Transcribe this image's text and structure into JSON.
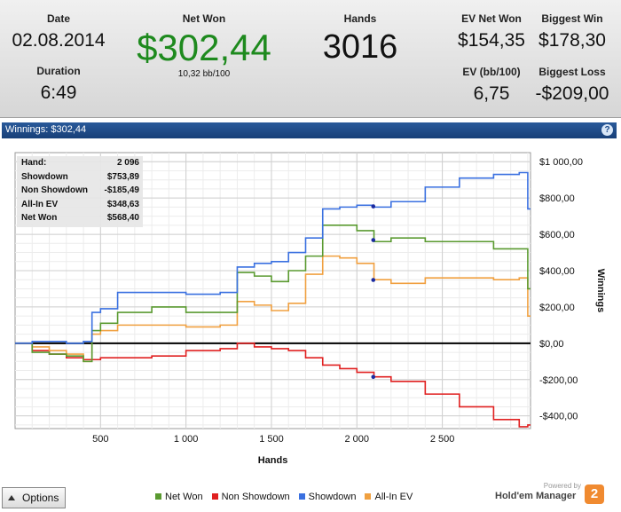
{
  "stats": {
    "date_label": "Date",
    "date_value": "02.08.2014",
    "duration_label": "Duration",
    "duration_value": "6:49",
    "net_won_label": "Net Won",
    "net_won_value": "$302,44",
    "bb_per_100": "10,32 bb/100",
    "hands_label": "Hands",
    "hands_value": "3016",
    "ev_net_won_label": "EV Net Won",
    "ev_net_won_value": "$154,35",
    "biggest_win_label": "Biggest Win",
    "biggest_win_value": "$178,30",
    "ev_bb_label": "EV (bb/100)",
    "ev_bb_value": "6,75",
    "biggest_loss_label": "Biggest Loss",
    "biggest_loss_value": "-$209,00"
  },
  "panel": {
    "title": "Winnings: $302,44",
    "help_icon": "?"
  },
  "tooltip": {
    "rows": [
      {
        "label": "Hand:",
        "value": "2 096"
      },
      {
        "label": "Showdown",
        "value": "$753,89"
      },
      {
        "label": "Non Showdown",
        "value": "-$185,49"
      },
      {
        "label": "All-In EV",
        "value": "$348,63"
      },
      {
        "label": "Net Won",
        "value": "$568,40"
      }
    ]
  },
  "bottom": {
    "options_label": "Options",
    "brand_powered": "Powered by",
    "brand_name": "Hold'em Manager",
    "brand_badge": "2"
  },
  "colors": {
    "net_won": "#5a9a30",
    "non_showdown": "#e02020",
    "showdown": "#3a70e0",
    "all_in_ev": "#f0a040"
  },
  "chart_data": {
    "type": "line",
    "title": "",
    "xlabel": "Hands",
    "ylabel": "Winnings",
    "xlim": [
      0,
      3016
    ],
    "ylim": [
      -470,
      1050
    ],
    "x_ticks": [
      500,
      1000,
      1500,
      2000,
      2500
    ],
    "x_tick_labels": [
      "500",
      "1 000",
      "1 500",
      "2 000",
      "2 500"
    ],
    "y_ticks": [
      -400,
      -200,
      0,
      200,
      400,
      600,
      800,
      1000
    ],
    "y_tick_labels": [
      "-$400,00",
      "-$200,00",
      "$0,00",
      "$200,00",
      "$400,00",
      "$600,00",
      "$800,00",
      "$1 000,00"
    ],
    "grid": true,
    "legend_position": "bottom",
    "x": [
      0,
      100,
      200,
      300,
      400,
      450,
      500,
      600,
      800,
      1000,
      1200,
      1300,
      1400,
      1500,
      1600,
      1700,
      1800,
      1900,
      2000,
      2100,
      2200,
      2400,
      2600,
      2800,
      2950,
      3000,
      3016
    ],
    "series": [
      {
        "name": "Net Won",
        "values": [
          0,
          -50,
          -60,
          -70,
          -100,
          70,
          110,
          170,
          200,
          170,
          170,
          390,
          370,
          340,
          400,
          480,
          650,
          650,
          620,
          560,
          580,
          560,
          560,
          520,
          520,
          300,
          300
        ]
      },
      {
        "name": "Non Showdown",
        "values": [
          0,
          -40,
          -60,
          -80,
          -90,
          -90,
          -80,
          -80,
          -70,
          -40,
          -30,
          0,
          -20,
          -30,
          -40,
          -80,
          -120,
          -140,
          -160,
          -185,
          -210,
          -280,
          -350,
          -420,
          -460,
          -450,
          -450
        ]
      },
      {
        "name": "Showdown",
        "values": [
          0,
          10,
          10,
          0,
          10,
          170,
          190,
          280,
          280,
          270,
          280,
          420,
          440,
          450,
          500,
          580,
          740,
          750,
          760,
          750,
          780,
          860,
          910,
          930,
          940,
          740,
          740
        ]
      },
      {
        "name": "All-In EV",
        "values": [
          0,
          -20,
          -40,
          -60,
          -100,
          50,
          70,
          100,
          100,
          90,
          100,
          230,
          210,
          180,
          220,
          380,
          480,
          470,
          440,
          350,
          330,
          360,
          360,
          350,
          360,
          150,
          150
        ]
      }
    ],
    "annotations": [
      {
        "x": 2096,
        "series": "Showdown",
        "value": 753.89
      },
      {
        "x": 2096,
        "series": "Non Showdown",
        "value": -185.49
      },
      {
        "x": 2096,
        "series": "All-In EV",
        "value": 348.63
      },
      {
        "x": 2096,
        "series": "Net Won",
        "value": 568.4
      }
    ]
  }
}
